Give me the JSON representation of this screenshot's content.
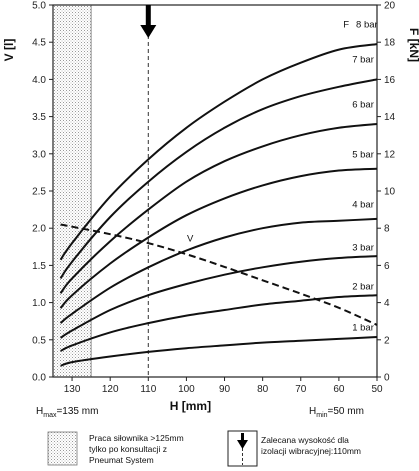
{
  "chart_data": {
    "type": "line",
    "xlabel": "H [mm]",
    "ylabel_left": "V [l]",
    "ylabel_right": "F [kN]",
    "x_reversed": true,
    "xlim": [
      135,
      50
    ],
    "ylim_left": [
      0,
      5.0
    ],
    "ylim_right": [
      0,
      20
    ],
    "x_ticks": [
      130,
      120,
      110,
      100,
      90,
      80,
      70,
      60,
      50
    ],
    "y_left_ticks": [
      "0.0",
      "0.5",
      "1.0",
      "1.5",
      "2.0",
      "2.5",
      "3.0",
      "3.5",
      "4.0",
      "4.5",
      "5.0"
    ],
    "y_right_ticks": [
      "0",
      "2",
      "4",
      "6",
      "8",
      "10",
      "12",
      "14",
      "16",
      "18",
      "20"
    ],
    "force_axis_prefix": "F",
    "grid": "vertical dashed line at recommended height",
    "recommended_height_mm": 110,
    "restricted_zone_mm": [
      135,
      125
    ],
    "force_series": [
      {
        "name": "8 bar",
        "x": [
          133,
          130,
          120,
          110,
          100,
          90,
          80,
          70,
          60,
          50
        ],
        "y": [
          6.3,
          7.2,
          9.7,
          11.7,
          13.4,
          14.8,
          16.0,
          16.9,
          17.6,
          17.9
        ]
      },
      {
        "name": "7 bar",
        "x": [
          133,
          130,
          120,
          110,
          100,
          90,
          80,
          70,
          60,
          50
        ],
        "y": [
          5.3,
          6.2,
          8.6,
          10.5,
          12.1,
          13.4,
          14.4,
          15.1,
          15.6,
          16.0
        ]
      },
      {
        "name": "6 bar",
        "x": [
          133,
          130,
          120,
          110,
          100,
          90,
          80,
          70,
          60,
          50
        ],
        "y": [
          4.5,
          5.3,
          7.3,
          9.0,
          10.5,
          11.6,
          12.4,
          13.0,
          13.4,
          13.6
        ]
      },
      {
        "name": "5 bar",
        "x": [
          133,
          130,
          120,
          110,
          100,
          90,
          80,
          70,
          60,
          50
        ],
        "y": [
          3.7,
          4.4,
          6.1,
          7.5,
          8.7,
          9.6,
          10.3,
          10.8,
          11.1,
          11.2
        ]
      },
      {
        "name": "4 bar",
        "x": [
          133,
          130,
          120,
          110,
          100,
          90,
          80,
          70,
          60,
          50
        ],
        "y": [
          2.9,
          3.4,
          4.8,
          5.9,
          6.8,
          7.5,
          8.0,
          8.3,
          8.4,
          8.5
        ]
      },
      {
        "name": "3 bar",
        "x": [
          133,
          130,
          120,
          110,
          100,
          90,
          80,
          70,
          60,
          50
        ],
        "y": [
          2.1,
          2.5,
          3.6,
          4.4,
          5.0,
          5.5,
          5.9,
          6.2,
          6.4,
          6.5
        ]
      },
      {
        "name": "2 bar",
        "x": [
          133,
          130,
          120,
          110,
          100,
          90,
          80,
          70,
          60,
          50
        ],
        "y": [
          1.4,
          1.7,
          2.4,
          2.9,
          3.3,
          3.6,
          3.9,
          4.1,
          4.3,
          4.4
        ]
      },
      {
        "name": "1 bar",
        "x": [
          133,
          130,
          120,
          110,
          100,
          90,
          80,
          70,
          60,
          50
        ],
        "y": [
          0.6,
          0.8,
          1.1,
          1.35,
          1.55,
          1.7,
          1.85,
          1.95,
          2.05,
          2.15
        ]
      }
    ],
    "volume_series": {
      "name": "V",
      "x": [
        133,
        130,
        120,
        110,
        100,
        90,
        80,
        70,
        60,
        50
      ],
      "y": [
        2.05,
        2.02,
        1.92,
        1.8,
        1.65,
        1.48,
        1.3,
        1.12,
        0.93,
        0.7
      ]
    }
  },
  "h_max_text": {
    "main": "H",
    "sub": "max",
    "value": "=135 mm"
  },
  "h_min_text": {
    "main": "H",
    "sub": "min",
    "value": "=50 mm"
  },
  "legend": {
    "hatch_text": [
      "Praca siłownika >125mm",
      "tylko po konsultacji z",
      "Pneumat System"
    ],
    "arrow_text": [
      "Zalecana wysokość dla",
      "izolacji wibracyjnej:110mm"
    ]
  },
  "colors": {
    "curve": "#111111",
    "hatch": "#b0b0b0",
    "axis": "#222222"
  }
}
